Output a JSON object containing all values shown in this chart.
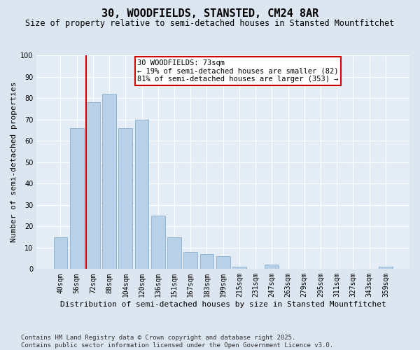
{
  "title": "30, WOODFIELDS, STANSTED, CM24 8AR",
  "subtitle": "Size of property relative to semi-detached houses in Stansted Mountfitchet",
  "xlabel": "Distribution of semi-detached houses by size in Stansted Mountfitchet",
  "ylabel": "Number of semi-detached properties",
  "categories": [
    "40sqm",
    "56sqm",
    "72sqm",
    "88sqm",
    "104sqm",
    "120sqm",
    "136sqm",
    "151sqm",
    "167sqm",
    "183sqm",
    "199sqm",
    "215sqm",
    "231sqm",
    "247sqm",
    "263sqm",
    "279sqm",
    "295sqm",
    "311sqm",
    "327sqm",
    "343sqm",
    "359sqm"
  ],
  "values": [
    15,
    66,
    78,
    82,
    66,
    70,
    25,
    15,
    8,
    7,
    6,
    1,
    0,
    2,
    0,
    0,
    0,
    0,
    0,
    0,
    1
  ],
  "bar_color": "#b8d0e8",
  "bar_edge_color": "#8ab0d0",
  "red_line_index": 2,
  "annotation_title": "30 WOODFIELDS: 73sqm",
  "annotation_line1": "← 19% of semi-detached houses are smaller (82)",
  "annotation_line2": "81% of semi-detached houses are larger (353) →",
  "annotation_box_color": "#ffffff",
  "annotation_box_edge": "#cc0000",
  "ylim": [
    0,
    100
  ],
  "yticks": [
    0,
    10,
    20,
    30,
    40,
    50,
    60,
    70,
    80,
    90,
    100
  ],
  "footer": "Contains HM Land Registry data © Crown copyright and database right 2025.\nContains public sector information licensed under the Open Government Licence v3.0.",
  "bg_color": "#dce6f0",
  "plot_bg_color": "#e4edf6",
  "grid_color": "#ffffff",
  "title_fontsize": 11,
  "subtitle_fontsize": 8.5,
  "axis_label_fontsize": 8,
  "tick_fontsize": 7,
  "footer_fontsize": 6.5,
  "annotation_fontsize": 7.5
}
